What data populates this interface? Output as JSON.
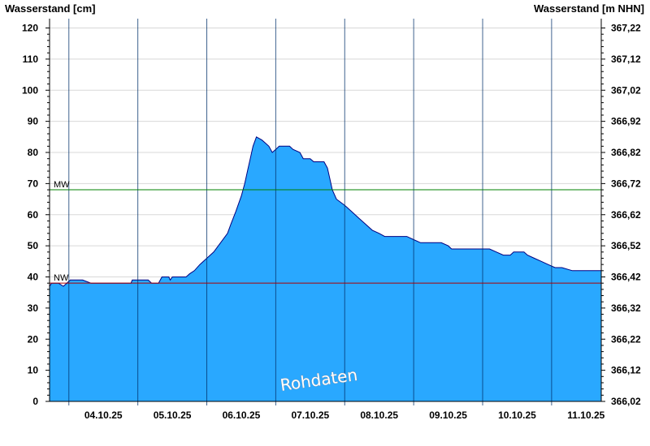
{
  "chart_data": {
    "type": "area",
    "left_axis_title": "Wasserstand [cm]",
    "right_axis_title": "Wasserstand [m NHN]",
    "ylim": [
      0,
      123
    ],
    "grid": true,
    "y_ticks": [
      0,
      10,
      20,
      30,
      40,
      50,
      60,
      70,
      80,
      90,
      100,
      110,
      120
    ],
    "right_ticks": [
      "366,02",
      "366,12",
      "366,22",
      "366,32",
      "366,42",
      "366,52",
      "366,62",
      "366,72",
      "366,82",
      "366,92",
      "367,02",
      "367,12",
      "367,22"
    ],
    "x_ticks": [
      "04.10.25",
      "05.10.25",
      "06.10.25",
      "07.10.25",
      "08.10.25",
      "09.10.25",
      "10.10.25",
      "11.10.25"
    ],
    "x_range_days": [
      3.72,
      11.72
    ],
    "reference_lines": [
      {
        "label": "MW",
        "value": 68,
        "color": "#008000"
      },
      {
        "label": "NW",
        "value": 38,
        "color": "#aa0000"
      }
    ],
    "watermark": "Rohdaten",
    "fill_color": "#29a8ff",
    "line_color": "#000080",
    "series": [
      {
        "values": [
          [
            3.72,
            37
          ],
          [
            3.75,
            38
          ],
          [
            3.85,
            38
          ],
          [
            3.92,
            37
          ],
          [
            3.97,
            38
          ],
          [
            4.02,
            39
          ],
          [
            4.2,
            39
          ],
          [
            4.32,
            38
          ],
          [
            4.9,
            38
          ],
          [
            4.92,
            39
          ],
          [
            5.15,
            39
          ],
          [
            5.2,
            38
          ],
          [
            5.3,
            38
          ],
          [
            5.35,
            40
          ],
          [
            5.45,
            40
          ],
          [
            5.47,
            39
          ],
          [
            5.5,
            40
          ],
          [
            5.7,
            40
          ],
          [
            5.75,
            41
          ],
          [
            5.82,
            42
          ],
          [
            5.9,
            44
          ],
          [
            6.0,
            46
          ],
          [
            6.1,
            48
          ],
          [
            6.2,
            51
          ],
          [
            6.3,
            54
          ],
          [
            6.35,
            57
          ],
          [
            6.42,
            61
          ],
          [
            6.5,
            66
          ],
          [
            6.55,
            70
          ],
          [
            6.6,
            75
          ],
          [
            6.63,
            78
          ],
          [
            6.67,
            82
          ],
          [
            6.72,
            85
          ],
          [
            6.8,
            84
          ],
          [
            6.85,
            83
          ],
          [
            6.9,
            82
          ],
          [
            6.95,
            80
          ],
          [
            7.0,
            81
          ],
          [
            7.05,
            82
          ],
          [
            7.2,
            82
          ],
          [
            7.25,
            81
          ],
          [
            7.35,
            80
          ],
          [
            7.4,
            78
          ],
          [
            7.5,
            78
          ],
          [
            7.55,
            77
          ],
          [
            7.7,
            77
          ],
          [
            7.75,
            75
          ],
          [
            7.78,
            72
          ],
          [
            7.82,
            68
          ],
          [
            7.88,
            65
          ],
          [
            8.0,
            63
          ],
          [
            8.1,
            61
          ],
          [
            8.2,
            59
          ],
          [
            8.3,
            57
          ],
          [
            8.4,
            55
          ],
          [
            8.5,
            54
          ],
          [
            8.58,
            53
          ],
          [
            8.9,
            53
          ],
          [
            9.0,
            52
          ],
          [
            9.1,
            51
          ],
          [
            9.4,
            51
          ],
          [
            9.5,
            50
          ],
          [
            9.55,
            49
          ],
          [
            10.1,
            49
          ],
          [
            10.2,
            48
          ],
          [
            10.3,
            47
          ],
          [
            10.4,
            47
          ],
          [
            10.45,
            48
          ],
          [
            10.6,
            48
          ],
          [
            10.65,
            47
          ],
          [
            10.75,
            46
          ],
          [
            10.85,
            45
          ],
          [
            10.95,
            44
          ],
          [
            11.05,
            43
          ],
          [
            11.15,
            43
          ],
          [
            11.3,
            42
          ],
          [
            11.72,
            42
          ]
        ]
      }
    ]
  }
}
